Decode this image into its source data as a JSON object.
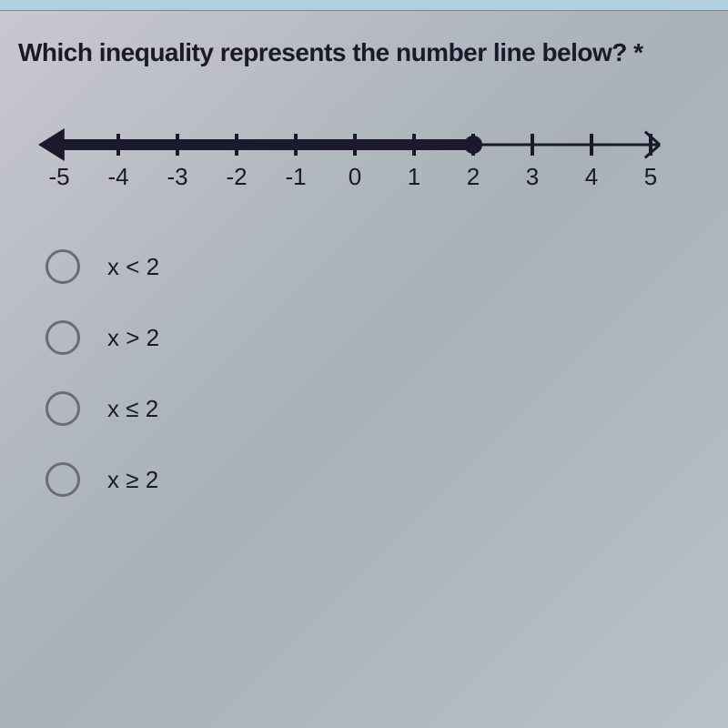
{
  "question": {
    "text": "Which inequality represents the number line below?",
    "required_mark": "*"
  },
  "number_line": {
    "min": -5,
    "max": 5,
    "tick_step": 1,
    "labels": [
      "-5",
      "-4",
      "-3",
      "-2",
      "-1",
      "0",
      "1",
      "2",
      "3",
      "4",
      "5"
    ],
    "fill_to": 2,
    "fill_direction": "left",
    "closed_circle": true,
    "line_color": "#1a1a2a",
    "thick_line_width": 12,
    "thin_line_width": 3,
    "tick_height": 24,
    "circle_radius": 10,
    "arrow_size": 18,
    "label_fontsize": 26,
    "label_color": "#1a1a2a"
  },
  "options": [
    {
      "label": "x < 2",
      "value": "lt2"
    },
    {
      "label": "x > 2",
      "value": "gt2"
    },
    {
      "label": "x ≤ 2",
      "value": "le2"
    },
    {
      "label": "x ≥ 2",
      "value": "ge2"
    }
  ]
}
